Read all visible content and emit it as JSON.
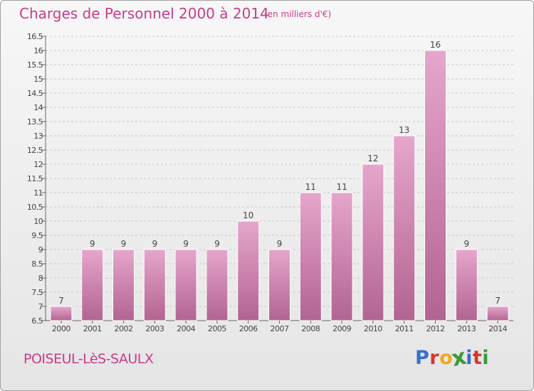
{
  "header": {
    "title": "Charges de Personnel 2000 à 2014",
    "subtitle": "(en milliers d'€)"
  },
  "footer": {
    "commune": "POISEUL-LèS-SAULX",
    "logo_letters": [
      "P",
      "r",
      "o",
      "x",
      "i",
      "t",
      "i"
    ]
  },
  "colors": {
    "title": "#c83c8a",
    "bar_top": "#e6a6cc",
    "bar_bottom": "#b26491",
    "grid": "#c8c8c8",
    "logo": [
      "#3a6fcf",
      "#d8342f",
      "#f0a820",
      "#3a9a3a",
      "#3a6fcf",
      "#d8342f",
      "#3a9a3a"
    ]
  },
  "chart_data": {
    "type": "bar",
    "categories": [
      "2000",
      "2001",
      "2002",
      "2003",
      "2004",
      "2005",
      "2006",
      "2007",
      "2008",
      "2009",
      "2010",
      "2011",
      "2012",
      "2013",
      "2014"
    ],
    "values": [
      7,
      9,
      9,
      9,
      9,
      9,
      10,
      9,
      11,
      11,
      12,
      13,
      16,
      9,
      7
    ],
    "title": "Charges de Personnel 2000 à 2014",
    "subtitle": "(en milliers d'€)",
    "ylim": [
      6.5,
      16.5
    ],
    "yticks": [
      "6.5",
      "7",
      "7.5",
      "8",
      "8.5",
      "9",
      "9.5",
      "10",
      "10.5",
      "11",
      "11.5",
      "12",
      "12.5",
      "13",
      "13.5",
      "14",
      "14.5",
      "15",
      "15.5",
      "16",
      "16.5"
    ],
    "grid": true,
    "legend": "none"
  }
}
